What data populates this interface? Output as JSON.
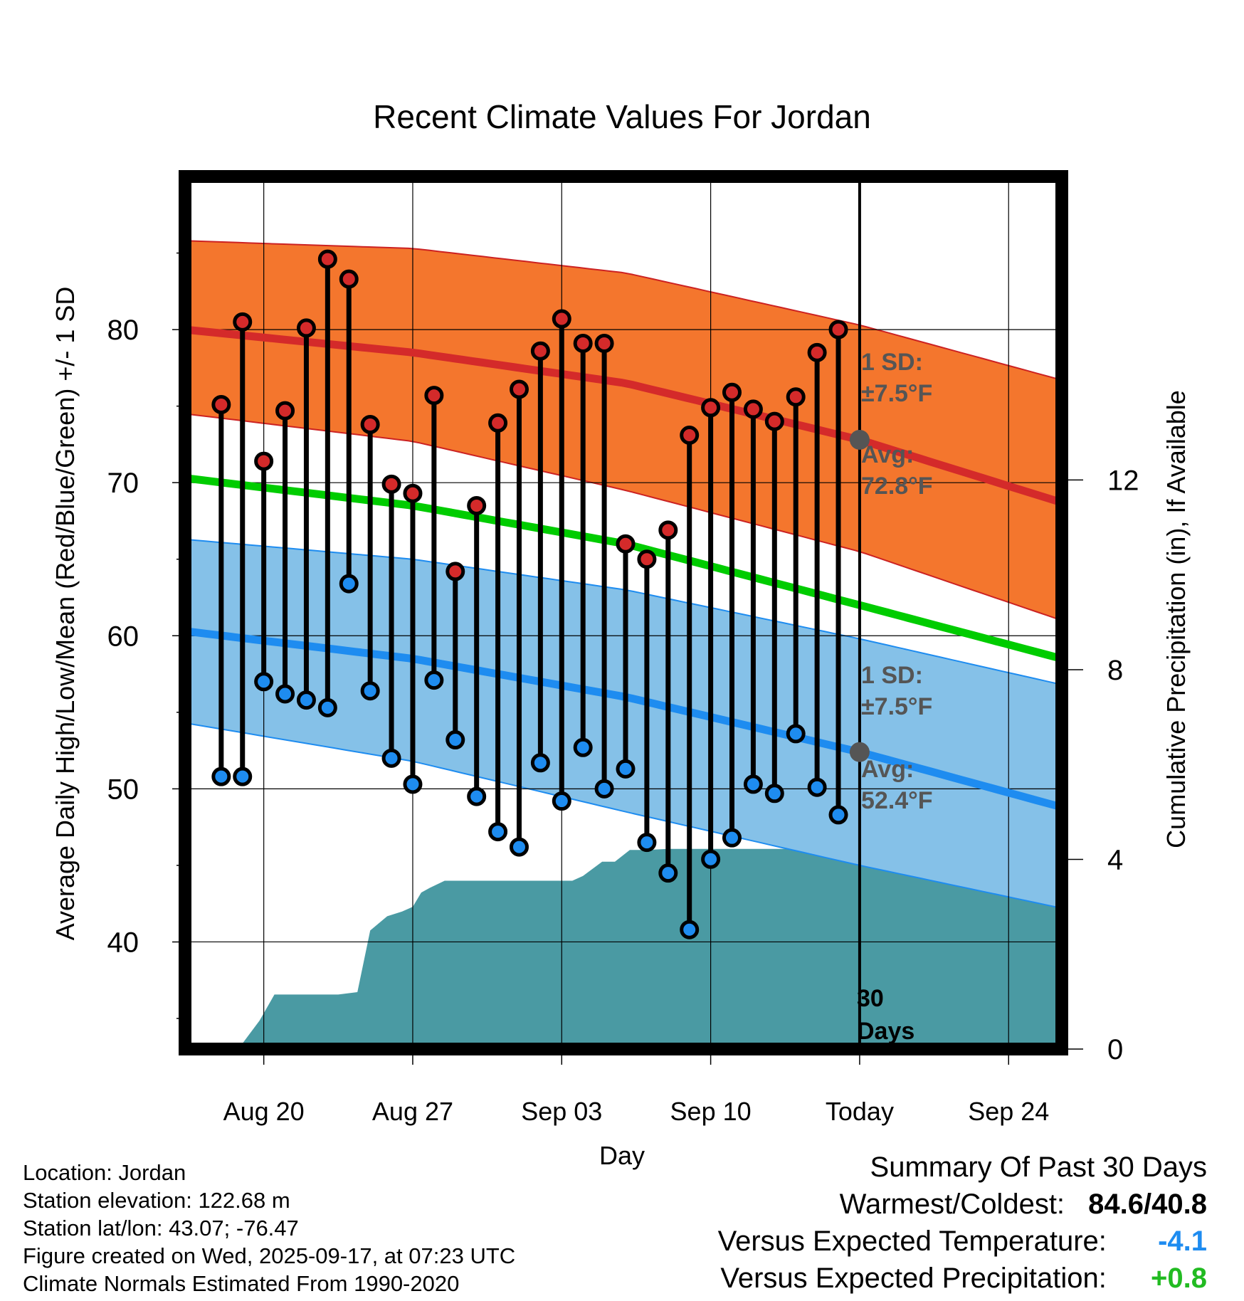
{
  "colors": {
    "high_band": "#f4762d",
    "high_band_edge": "#cc2222",
    "high_avg": "#d42a2a",
    "low_band": "#85c1e8",
    "low_band_edge": "#1e8cf0",
    "low_avg": "#1e8cf0",
    "mean": "#00cc00",
    "precip": "#4a9aa3",
    "high_marker": "#d42a2a",
    "low_marker": "#1e8cf0",
    "today_dot": "#555555",
    "annotation": "#555555",
    "summary_temp": "#1e8cf0",
    "summary_precip": "#22bb22"
  },
  "chart_data": {
    "type": "line",
    "title": "Recent Climate Values For Jordan",
    "xlabel": "Day",
    "ylabel": "Average Daily High/Low/Mean (Red/Blue/Green) +/- 1 SD",
    "y2label": "Cumulative Precipitation (in), If Available",
    "xlim": [
      -0.7,
      40.5
    ],
    "ylim": [
      33.0,
      90.0
    ],
    "y2lim": [
      0.0,
      18.4
    ],
    "y_ticks": [
      40,
      50,
      60,
      70,
      80
    ],
    "y2_ticks": [
      0,
      4,
      8,
      12
    ],
    "x_ticks": [
      {
        "day": 3,
        "label": "Aug 20"
      },
      {
        "day": 10,
        "label": "Aug 27"
      },
      {
        "day": 17,
        "label": "Sep 03"
      },
      {
        "day": 24,
        "label": "Sep 10"
      },
      {
        "day": 31,
        "label": "Today"
      },
      {
        "day": 38,
        "label": "Sep 24"
      }
    ],
    "today_day": 31,
    "normals": {
      "days": [
        -0.7,
        10,
        20,
        31,
        40.5
      ],
      "high_upper": [
        85.8,
        85.3,
        83.7,
        80.3,
        76.7
      ],
      "high_avg": [
        80.0,
        78.5,
        76.5,
        72.8,
        68.7
      ],
      "high_lower": [
        74.5,
        72.7,
        69.5,
        65.5,
        61.0
      ],
      "mean": [
        70.3,
        68.5,
        66.0,
        62.0,
        58.5
      ],
      "low_upper": [
        66.3,
        65.0,
        63.0,
        59.8,
        56.8
      ],
      "low_avg": [
        60.3,
        58.5,
        56.0,
        52.4,
        48.8
      ],
      "low_lower": [
        54.3,
        51.8,
        48.5,
        45.0,
        42.2
      ]
    },
    "series": [
      {
        "name": "Daily High",
        "days": [
          1,
          2,
          3,
          4,
          5,
          6,
          7,
          8,
          9,
          10,
          11,
          12,
          13,
          14,
          15,
          16,
          17,
          18,
          19,
          20,
          21,
          22,
          23,
          24,
          25,
          26,
          27,
          28,
          29,
          30
        ],
        "values": [
          75.1,
          80.5,
          71.4,
          74.7,
          80.1,
          84.6,
          83.3,
          73.8,
          69.9,
          69.3,
          75.7,
          64.2,
          68.5,
          73.9,
          76.1,
          78.6,
          80.7,
          79.1,
          79.1,
          66.0,
          65.0,
          66.9,
          73.1,
          74.9,
          75.9,
          74.8,
          74.0,
          75.6,
          78.5,
          80.0
        ]
      },
      {
        "name": "Daily Low",
        "days": [
          1,
          2,
          3,
          4,
          5,
          6,
          7,
          8,
          9,
          10,
          11,
          12,
          13,
          14,
          15,
          16,
          17,
          18,
          19,
          20,
          21,
          22,
          23,
          24,
          25,
          26,
          27,
          28,
          29,
          30
        ],
        "values": [
          50.8,
          50.8,
          57.0,
          56.2,
          55.8,
          55.3,
          63.4,
          56.4,
          52.0,
          50.3,
          57.1,
          53.2,
          49.5,
          47.2,
          46.2,
          51.7,
          49.2,
          52.7,
          50.0,
          51.3,
          46.5,
          44.5,
          40.8,
          45.4,
          46.8,
          50.3,
          49.7,
          53.6,
          50.1,
          48.3
        ]
      },
      {
        "name": "Cumulative Precipitation",
        "days": [
          1.8,
          2.8,
          3.5,
          4.5,
          5.5,
          6.5,
          7.4,
          8.0,
          8.8,
          9.5,
          10.0,
          10.4,
          10.8,
          11.5,
          12.5,
          13.5,
          14.5,
          15.5,
          16.5,
          17.0,
          17.5,
          18.0,
          18.9,
          19.5,
          20.2,
          21.0,
          22.0,
          23.0,
          24.0,
          31.0,
          40.5
        ],
        "values": [
          0.0,
          0.6,
          1.15,
          1.15,
          1.15,
          1.15,
          1.2,
          2.5,
          2.8,
          2.9,
          3.0,
          3.3,
          3.4,
          3.55,
          3.55,
          3.55,
          3.55,
          3.55,
          3.55,
          3.55,
          3.55,
          3.65,
          3.95,
          3.95,
          4.2,
          4.2,
          4.22,
          4.22,
          4.22,
          4.22,
          4.22
        ]
      }
    ],
    "annotations": {
      "high_sd_label": "1 SD:",
      "high_sd_value": "±7.5°F",
      "high_avg_label": "Avg:",
      "high_avg_value": "72.8°F",
      "high_avg": 72.8,
      "low_sd_label": "1 SD:",
      "low_sd_value": "±7.5°F",
      "low_avg_label": "Avg:",
      "low_avg_value": "52.4°F",
      "low_avg": 52.4,
      "days_count": "30",
      "days_word": "Days"
    }
  },
  "station": {
    "location": "Location: Jordan",
    "elevation": "Station elevation: 122.68 m",
    "latlon": "Station lat/lon: 43.07; -76.47",
    "created": "Figure created on Wed, 2025-09-17, at 07:23 UTC",
    "normals": "Climate Normals Estimated From 1990-2020"
  },
  "summary": {
    "title": "Summary Of Past 30 Days",
    "warmest_label": "Warmest/Coldest:",
    "warmest_value": "84.6/40.8",
    "temp_label": "Versus Expected Temperature:",
    "temp_value": "-4.1",
    "precip_label": "Versus Expected Precipitation:",
    "precip_value": "+0.8"
  }
}
